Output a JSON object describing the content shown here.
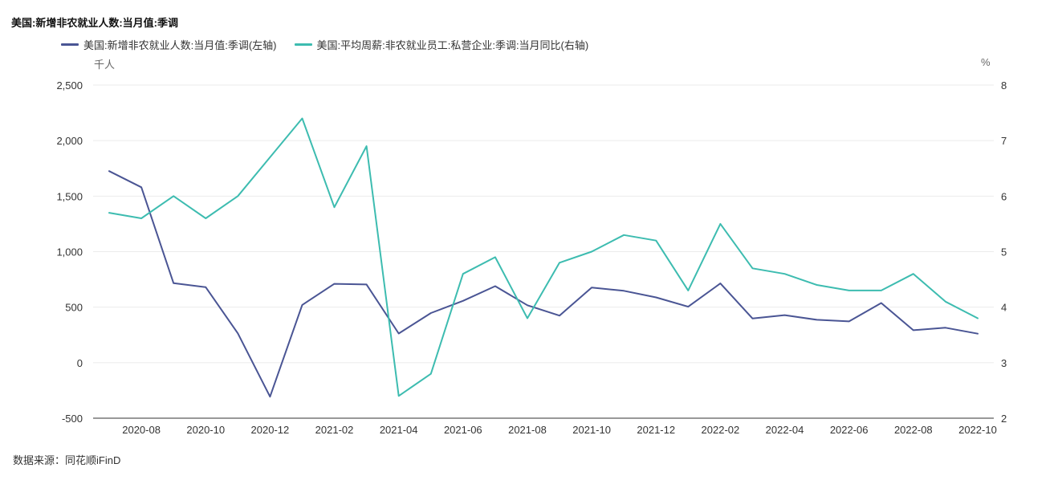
{
  "chart_data": {
    "type": "line",
    "title": "美国:新增非农就业人数:当月值:季调",
    "y_left_unit": "千人",
    "y_right_unit": "%",
    "y_left_lim": [
      -500,
      2500
    ],
    "y_left_ticks": [
      "2,500",
      "2,000",
      "1,500",
      "1,000",
      "500",
      "0",
      "-500"
    ],
    "y_right_lim": [
      2,
      8
    ],
    "y_right_ticks": [
      "8",
      "7",
      "6",
      "5",
      "4",
      "3",
      "2"
    ],
    "x_tick_labels": [
      "2020-08",
      "2020-10",
      "2020-12",
      "2021-02",
      "2021-04",
      "2021-06",
      "2021-08",
      "2021-10",
      "2021-12",
      "2022-02",
      "2022-04",
      "2022-06",
      "2022-08",
      "2022-10"
    ],
    "x": [
      "2020-07",
      "2020-08",
      "2020-09",
      "2020-10",
      "2020-11",
      "2020-12",
      "2021-01",
      "2021-02",
      "2021-03",
      "2021-04",
      "2021-05",
      "2021-06",
      "2021-07",
      "2021-08",
      "2021-09",
      "2021-10",
      "2021-11",
      "2021-12",
      "2022-01",
      "2022-02",
      "2022-03",
      "2022-04",
      "2022-05",
      "2022-06",
      "2022-07",
      "2022-08",
      "2022-09",
      "2022-10"
    ],
    "series": [
      {
        "name": "美国:新增非农就业人数:当月值:季调(左轴)",
        "axis": "left",
        "color": "#4a5594",
        "values": [
          1725,
          1580,
          716,
          680,
          264,
          -306,
          520,
          710,
          704,
          263,
          447,
          557,
          689,
          517,
          424,
          677,
          647,
          588,
          504,
          714,
          398,
          428,
          386,
          372,
          537,
          292,
          315,
          261
        ]
      },
      {
        "name": "美国:平均周薪:非农就业员工:私营企业:季调:当月同比(右轴)",
        "axis": "right",
        "color": "#3dbcb0",
        "values": [
          5.7,
          5.6,
          6.0,
          5.6,
          6.0,
          6.7,
          7.4,
          5.8,
          6.9,
          2.4,
          2.8,
          4.6,
          4.9,
          3.8,
          4.8,
          5.0,
          5.3,
          5.2,
          4.3,
          5.5,
          4.7,
          4.6,
          4.4,
          4.3,
          4.3,
          4.6,
          4.1,
          3.8
        ]
      }
    ],
    "grid": true,
    "legend": "top-left"
  },
  "source_text": "数据来源：同花顺iFinD"
}
